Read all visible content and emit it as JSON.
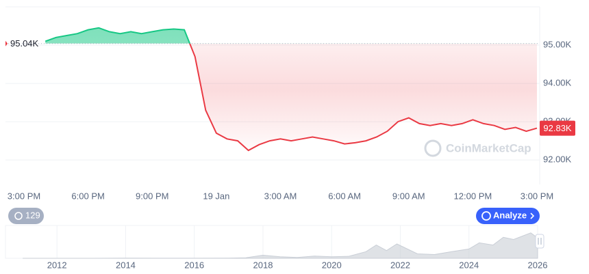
{
  "chart_data": [
    {
      "type": "line",
      "categories": [
        "3:00 PM",
        null,
        null,
        null,
        null,
        null,
        "6:00 PM",
        null,
        null,
        null,
        null,
        null,
        "9:00 PM",
        null,
        null,
        null,
        null,
        null,
        "19 Jan",
        null,
        null,
        null,
        null,
        null,
        "3:00 AM",
        null,
        null,
        null,
        null,
        null,
        "6:00 AM",
        null,
        null,
        null,
        null,
        null,
        "9:00 AM",
        null,
        null,
        null,
        null,
        null,
        "12:00 PM",
        null,
        null,
        null,
        null,
        null,
        "3:00 PM"
      ],
      "values": [
        null,
        null,
        95100,
        95200,
        95250,
        95300,
        95400,
        95450,
        95350,
        95300,
        95350,
        95300,
        95350,
        95400,
        95420,
        95400,
        94700,
        93300,
        92700,
        92550,
        92500,
        92250,
        92400,
        92500,
        92550,
        92500,
        92550,
        92600,
        92550,
        92500,
        92420,
        92450,
        92500,
        92600,
        92750,
        93000,
        93100,
        92950,
        92900,
        92950,
        92900,
        92950,
        93050,
        92950,
        92900,
        92800,
        92850,
        92750,
        92830
      ],
      "baseline": {
        "value": 95040,
        "label": "95.04K"
      },
      "last_price": {
        "value": 92830,
        "label": "92.83K"
      },
      "ylim": [
        91360,
        96000
      ],
      "yticks": [
        {
          "value": 92000,
          "label": "92.00K"
        },
        {
          "value": 93000,
          "label": "93.00K"
        },
        {
          "value": 94000,
          "label": "94.00K"
        },
        {
          "value": 95000,
          "label": "95.00K"
        }
      ],
      "colors": {
        "up": "#16c784",
        "down": "#ea3943"
      },
      "grid": true
    },
    {
      "type": "area",
      "x": [
        2011,
        2012,
        2013,
        2014,
        2015,
        2016,
        2017,
        2017.5,
        2018,
        2018.5,
        2019,
        2019.5,
        2020,
        2020.5,
        2021,
        2021.3,
        2021.6,
        2021.9,
        2022.5,
        2023,
        2023.5,
        2024,
        2024.3,
        2024.7,
        2025,
        2025.3,
        2025.8,
        2026
      ],
      "values": [
        0,
        0.005,
        0.1,
        0.6,
        0.3,
        0.4,
        1,
        2.5,
        14,
        7,
        3.7,
        10,
        7,
        9,
        30,
        60,
        35,
        65,
        20,
        17,
        30,
        42,
        70,
        60,
        95,
        85,
        115,
        92
      ],
      "xlim": [
        2010.5,
        2026
      ],
      "ylim": [
        0,
        130
      ],
      "xticks": [
        2012,
        2014,
        2016,
        2018,
        2020,
        2022,
        2024,
        2026
      ],
      "color": "#c9ced6"
    }
  ],
  "ui": {
    "alerts": "129",
    "analyze": "Analyze",
    "watermark": "CoinMarketCap"
  }
}
